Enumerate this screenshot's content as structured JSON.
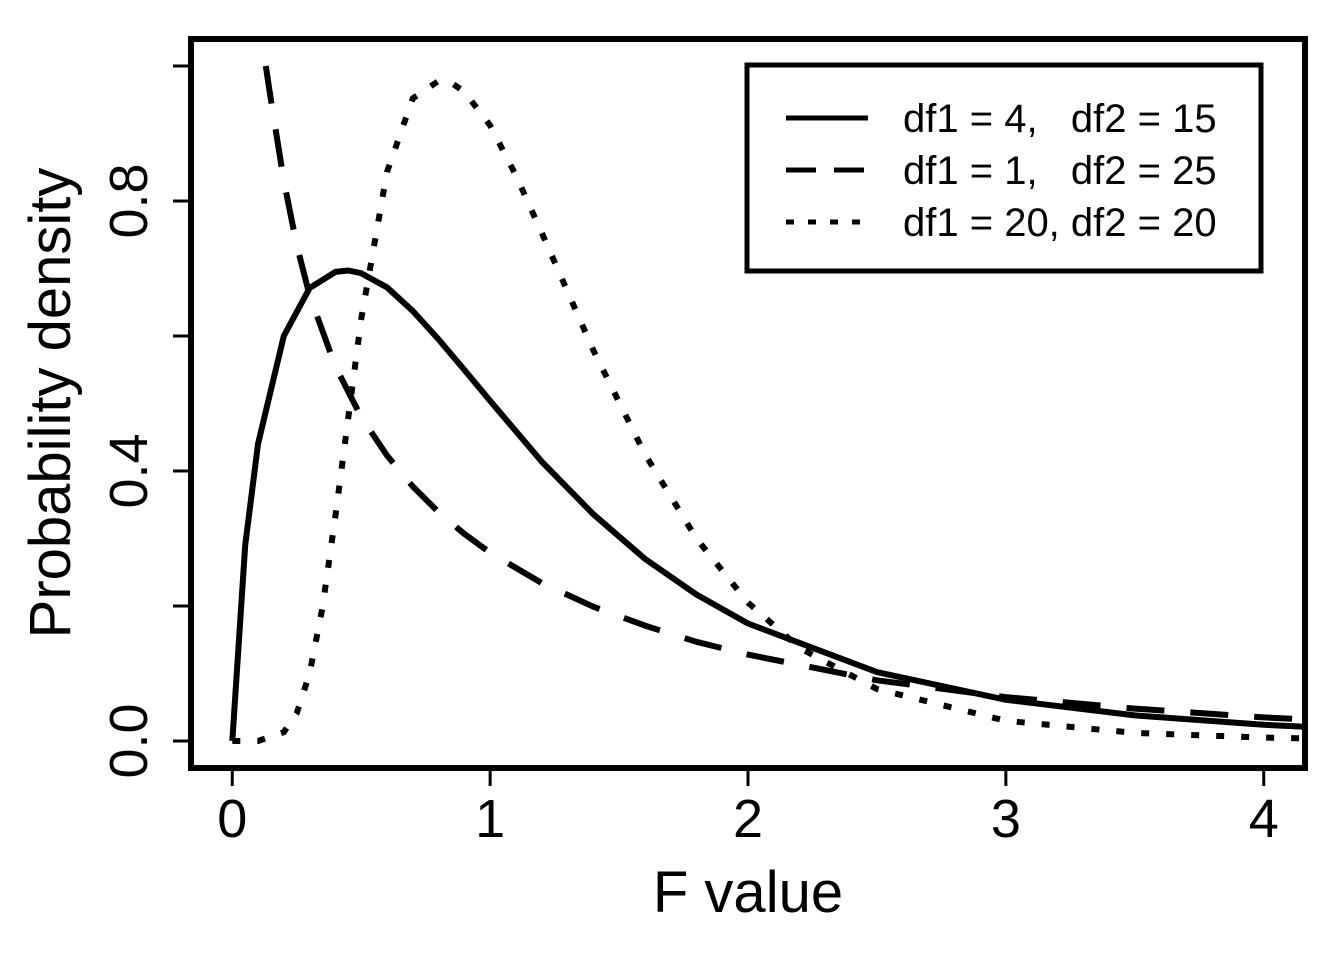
{
  "chart_data": {
    "type": "line",
    "title": "",
    "xlabel": "F value",
    "ylabel": "Probability density",
    "xlim": [
      -0.16,
      4.16
    ],
    "ylim": [
      -0.04,
      1.04
    ],
    "x_ticks": [
      0,
      1,
      2,
      3,
      4
    ],
    "x_tick_labels": [
      "0",
      "1",
      "2",
      "3",
      "4"
    ],
    "y_ticks": [
      0.0,
      0.2,
      0.4,
      0.6,
      0.8,
      1.0
    ],
    "y_tick_labels": [
      "0.0",
      "",
      "0.4",
      "",
      "0.8",
      ""
    ],
    "grid": false,
    "legend_position": "top-right",
    "color": "#000000",
    "series": [
      {
        "name": "df1 = 4,   df2 = 15",
        "line_style": "solid",
        "x": [
          0.0,
          0.05,
          0.1,
          0.2,
          0.3,
          0.4,
          0.45,
          0.5,
          0.6,
          0.7,
          0.8,
          0.9,
          1.0,
          1.2,
          1.4,
          1.6,
          1.8,
          2.0,
          2.5,
          3.0,
          3.5,
          4.0,
          4.16
        ],
        "y": [
          0.0,
          0.29,
          0.44,
          0.6,
          0.671,
          0.695,
          0.697,
          0.693,
          0.672,
          0.637,
          0.595,
          0.55,
          0.504,
          0.414,
          0.336,
          0.27,
          0.217,
          0.174,
          0.102,
          0.061,
          0.038,
          0.024,
          0.021
        ]
      },
      {
        "name": "df1 = 1,   df2 = 25",
        "line_style": "dashed",
        "x": [
          0.13,
          0.15,
          0.2,
          0.25,
          0.3,
          0.4,
          0.5,
          0.6,
          0.7,
          0.8,
          0.9,
          1.0,
          1.2,
          1.4,
          1.6,
          1.8,
          2.0,
          2.5,
          3.0,
          3.5,
          4.0,
          4.16
        ],
        "y": [
          1.0,
          0.95,
          0.83,
          0.735,
          0.66,
          0.555,
          0.48,
          0.423,
          0.377,
          0.339,
          0.307,
          0.279,
          0.234,
          0.199,
          0.171,
          0.147,
          0.128,
          0.09,
          0.065,
          0.048,
          0.035,
          0.032
        ]
      },
      {
        "name": "df1 = 20, df2 = 20",
        "line_style": "dotted",
        "x": [
          0.0,
          0.1,
          0.2,
          0.25,
          0.3,
          0.35,
          0.4,
          0.5,
          0.6,
          0.7,
          0.8,
          0.85,
          0.9,
          1.0,
          1.1,
          1.2,
          1.4,
          1.6,
          1.8,
          2.0,
          2.2,
          2.5,
          3.0,
          3.5,
          4.0,
          4.16
        ],
        "y": [
          0.0,
          0.0,
          0.013,
          0.041,
          0.1,
          0.198,
          0.333,
          0.625,
          0.843,
          0.952,
          0.978,
          0.975,
          0.962,
          0.912,
          0.838,
          0.753,
          0.579,
          0.425,
          0.3,
          0.205,
          0.138,
          0.077,
          0.03,
          0.012,
          0.005,
          0.004
        ]
      }
    ]
  }
}
